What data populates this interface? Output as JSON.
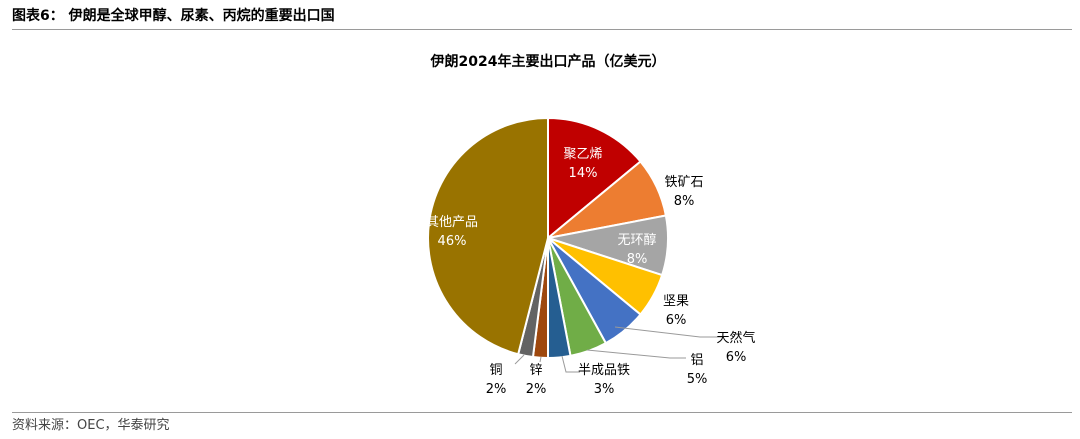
{
  "figure": {
    "caption": "图表6：  伊朗是全球甲醇、尿素、丙烷的重要出口国",
    "source": "资料来源：OEC，华泰研究"
  },
  "chart_data": {
    "type": "pie",
    "title": "伊朗2024年主要出口产品（亿美元）",
    "slices": [
      {
        "label": "聚乙烯",
        "value": 14,
        "display": "14%",
        "color": "#C00000"
      },
      {
        "label": "铁矿石",
        "value": 8,
        "display": "8%",
        "color": "#ED7D31"
      },
      {
        "label": "无环醇",
        "value": 8,
        "display": "8%",
        "color": "#A5A5A5"
      },
      {
        "label": "坚果",
        "value": 6,
        "display": "6%",
        "color": "#FFC000"
      },
      {
        "label": "天然气",
        "value": 6,
        "display": "6%",
        "color": "#4472C4"
      },
      {
        "label": "铝",
        "value": 5,
        "display": "5%",
        "color": "#70AD47"
      },
      {
        "label": "半成品铁",
        "value": 3,
        "display": "3%",
        "color": "#255E91"
      },
      {
        "label": "锌",
        "value": 2,
        "display": "2%",
        "color": "#9E480E"
      },
      {
        "label": "铜",
        "value": 2,
        "display": "2%",
        "color": "#636363"
      },
      {
        "label": "其他产品",
        "value": 46,
        "display": "46%",
        "color": "#997300"
      }
    ]
  }
}
